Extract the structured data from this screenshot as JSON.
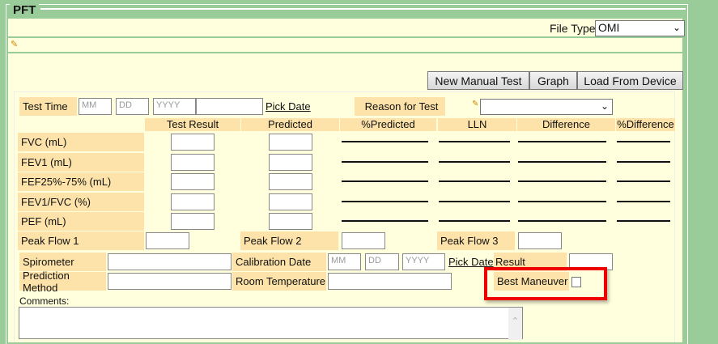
{
  "section": {
    "title": "PFT"
  },
  "file_type": {
    "label": "File Type:",
    "value": "OMI"
  },
  "toolbar": {
    "new_manual_test": "New Manual Test",
    "graph": "Graph",
    "load_from_device": "Load From Device"
  },
  "test_time": {
    "label": "Test Time",
    "mm": "MM",
    "dd": "DD",
    "yyyy": "YYYY",
    "pick_date": "Pick Date",
    "reason_label": "Reason for Test",
    "reason_value": ""
  },
  "columns": [
    "Test Result",
    "Predicted",
    "%Predicted",
    "LLN",
    "Difference",
    "%Difference"
  ],
  "rows": [
    "FVC (mL)",
    "FEV1 (mL)",
    "FEF25%-75% (mL)",
    "FEV1/FVC (%)",
    "PEF (mL)"
  ],
  "peak_flow": [
    "Peak Flow 1",
    "Peak Flow 2",
    "Peak Flow 3"
  ],
  "spirometer": {
    "label": "Spirometer",
    "calibration_label": "Calibration Date",
    "mm": "MM",
    "dd": "DD",
    "yyyy": "YYYY",
    "pick_date": "Pick Date",
    "result_label": "Result"
  },
  "prediction": {
    "label": "Prediction Method",
    "room_temp_label": "Room Temperature",
    "best_maneuver_label": "Best Maneuver",
    "best_maneuver_checked": false
  },
  "comments": {
    "label": "Comments:",
    "value": ""
  },
  "colors": {
    "highlight": "#ee0000",
    "green": "#99cc99",
    "label_bg": "#fde3a9",
    "panel_bg": "#ffffdd"
  }
}
